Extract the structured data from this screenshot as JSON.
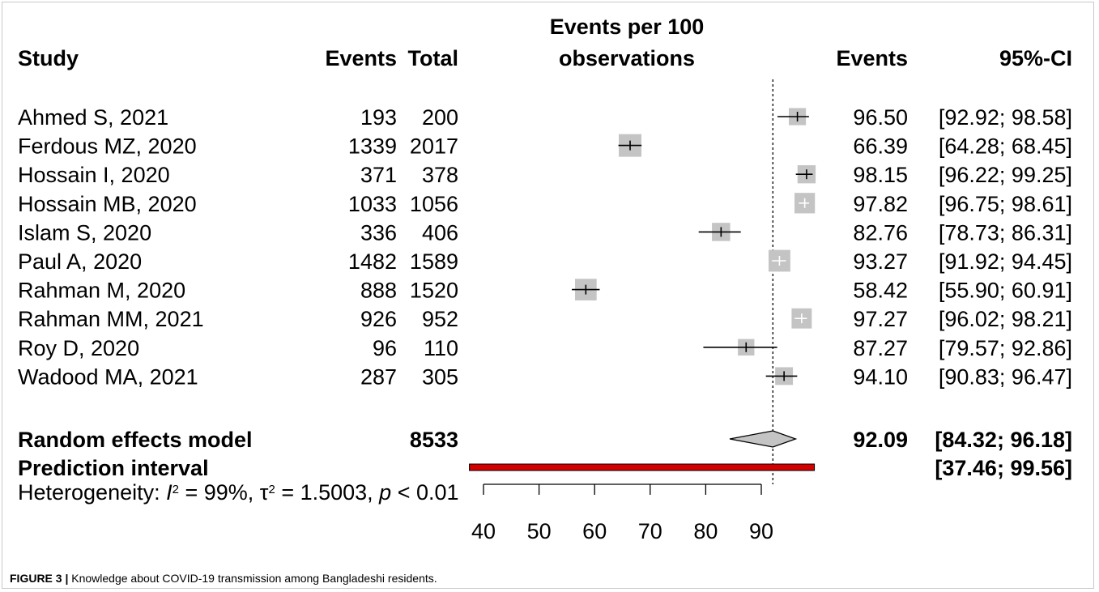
{
  "figure_caption": {
    "label": "FIGURE 3 |",
    "text": "Knowledge about COVID-19 transmission among Bangladeshi residents."
  },
  "columns": {
    "study": "Study",
    "events": "Events",
    "total": "Total",
    "plot_line1": "Events per 100",
    "plot_line2": "observations",
    "estimate": "Events",
    "ci": "95%-CI"
  },
  "heterogeneity": {
    "prefix": "Heterogeneity: ",
    "i2_symbol": "I",
    "i2_value": " = 99%, ",
    "tau_symbol": "τ",
    "tau_value": " = 1.5003, ",
    "p_symbol": "p",
    "p_value": " < 0.01"
  },
  "chart_data": {
    "type": "forest",
    "xlim": [
      40,
      100
    ],
    "x_ticks": [
      40,
      50,
      60,
      70,
      80,
      90
    ],
    "reference_line": 92.09,
    "studies": [
      {
        "study": "Ahmed S, 2021",
        "events": "193",
        "total": "200",
        "estimate": 96.5,
        "lower": 92.92,
        "upper": 98.58,
        "estimate_label": "96.50",
        "ci_label": "[92.92; 98.58]"
      },
      {
        "study": "Ferdous MZ, 2020",
        "events": "1339",
        "total": "2017",
        "estimate": 66.39,
        "lower": 64.28,
        "upper": 68.45,
        "estimate_label": "66.39",
        "ci_label": "[64.28; 68.45]"
      },
      {
        "study": "Hossain I, 2020",
        "events": "371",
        "total": "378",
        "estimate": 98.15,
        "lower": 96.22,
        "upper": 99.25,
        "estimate_label": "98.15",
        "ci_label": "[96.22; 99.25]"
      },
      {
        "study": "Hossain MB, 2020",
        "events": "1033",
        "total": "1056",
        "estimate": 97.82,
        "lower": 96.75,
        "upper": 98.61,
        "estimate_label": "97.82",
        "ci_label": "[96.75; 98.61]"
      },
      {
        "study": "Islam S, 2020",
        "events": "336",
        "total": "406",
        "estimate": 82.76,
        "lower": 78.73,
        "upper": 86.31,
        "estimate_label": "82.76",
        "ci_label": "[78.73; 86.31]"
      },
      {
        "study": "Paul A, 2020",
        "events": "1482",
        "total": "1589",
        "estimate": 93.27,
        "lower": 91.92,
        "upper": 94.45,
        "estimate_label": "93.27",
        "ci_label": "[91.92; 94.45]"
      },
      {
        "study": "Rahman M, 2020",
        "events": "888",
        "total": "1520",
        "estimate": 58.42,
        "lower": 55.9,
        "upper": 60.91,
        "estimate_label": "58.42",
        "ci_label": "[55.90; 60.91]"
      },
      {
        "study": "Rahman MM, 2021",
        "events": "926",
        "total": "952",
        "estimate": 97.27,
        "lower": 96.02,
        "upper": 98.21,
        "estimate_label": "97.27",
        "ci_label": "[96.02; 98.21]"
      },
      {
        "study": "Roy D, 2020",
        "events": "96",
        "total": "110",
        "estimate": 87.27,
        "lower": 79.57,
        "upper": 92.86,
        "estimate_label": "87.27",
        "ci_label": "[79.57; 92.86]"
      },
      {
        "study": "Wadood MA, 2021",
        "events": "287",
        "total": "305",
        "estimate": 94.1,
        "lower": 90.83,
        "upper": 96.47,
        "estimate_label": "94.10",
        "ci_label": "[90.83; 96.47]"
      }
    ],
    "summary": {
      "label": "Random effects model",
      "total": "8533",
      "estimate": 92.09,
      "lower": 84.32,
      "upper": 96.18,
      "estimate_label": "92.09",
      "ci_label": "[84.32; 96.18]"
    },
    "prediction": {
      "label": "Prediction interval",
      "lower": 37.46,
      "upper": 99.56,
      "ci_label": "[37.46; 99.56]"
    },
    "colors": {
      "square": "#c4c4c4",
      "diamond": "#c4c4c4",
      "prediction_fill": "#d40000",
      "ci_line_inside": "#ffffff",
      "ci_line": "#000000"
    }
  }
}
